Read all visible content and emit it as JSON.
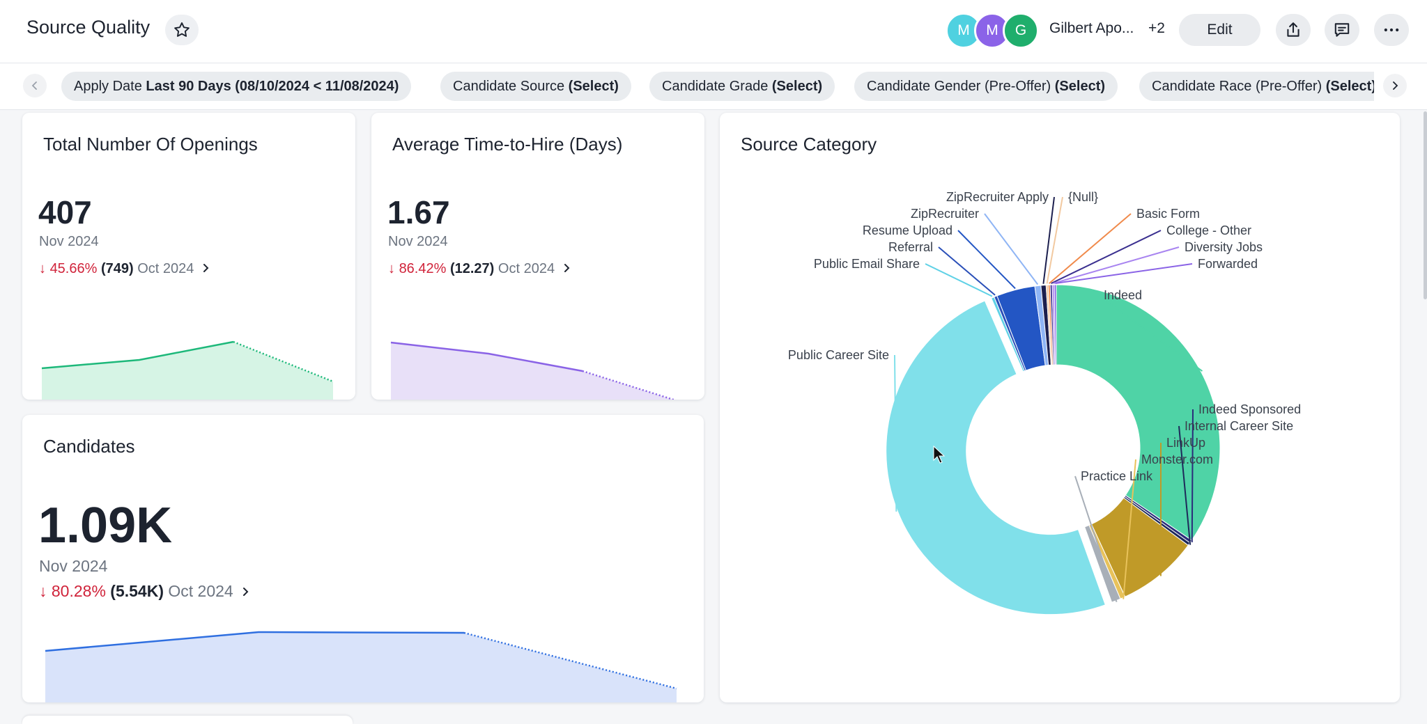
{
  "header": {
    "title": "Source Quality",
    "avatars": [
      {
        "initial": "M",
        "color": "#4fd1e0"
      },
      {
        "initial": "M",
        "color": "#8b63e8"
      },
      {
        "initial": "G",
        "color": "#1fae6c"
      }
    ],
    "user_name": "Gilbert Apo...",
    "more_users": "+2",
    "edit_label": "Edit",
    "icons": [
      "star-icon",
      "share-icon",
      "comment-icon",
      "more-icon"
    ]
  },
  "filters": [
    {
      "label": "Apply Date",
      "value": "Last 90 Days (08/10/2024 < 11/08/2024)"
    },
    {
      "label": "Candidate Source",
      "value": "(Select)"
    },
    {
      "label": "Candidate Grade",
      "value": "(Select)"
    },
    {
      "label": "Candidate Gender (Pre-Offer)",
      "value": "(Select)"
    },
    {
      "label": "Candidate Race (Pre-Offer)",
      "value": "(Select)"
    }
  ],
  "cards": {
    "openings": {
      "title": "Total Number Of Openings",
      "value": "407",
      "period": "Nov 2024",
      "change_pct": "45.66%",
      "compare_value": "(749)",
      "compare_period": "Oct 2024",
      "color": "#1db87a",
      "fill": "#d6f4e5"
    },
    "time_to_hire": {
      "title": "Average Time-to-Hire (Days)",
      "value": "1.67",
      "period": "Nov 2024",
      "change_pct": "86.42%",
      "compare_value": "(12.27)",
      "compare_period": "Oct 2024",
      "color": "#8a63e6",
      "fill": "#e8e0f8"
    },
    "candidates": {
      "title": "Candidates",
      "value": "1.09K",
      "period": "Nov 2024",
      "change_pct": "80.28%",
      "compare_value": "(5.54K)",
      "compare_period": "Oct 2024",
      "color": "#2f6fe0",
      "fill": "#d9e3fa"
    }
  },
  "chart_data": {
    "type": "pie",
    "title": "Source Category",
    "donut": true,
    "slices": [
      {
        "label": "Indeed",
        "value": 34.5,
        "color": "#4fd3a6"
      },
      {
        "label": "Indeed Sponsored",
        "value": 0.3,
        "color": "#2b2d7a"
      },
      {
        "label": "Internal Career Site",
        "value": 0.3,
        "color": "#1e2a5a"
      },
      {
        "label": "LinkUp",
        "value": 8.0,
        "color": "#c09a28"
      },
      {
        "label": "Monster.com",
        "value": 0.5,
        "color": "#e8c25a"
      },
      {
        "label": "Practice Link",
        "value": 0.9,
        "color": "#a8afb8"
      },
      {
        "label": "Public Career Site",
        "value": 49.0,
        "color": "#80e0ea"
      },
      {
        "label": "Public Email Share",
        "value": 0.3,
        "color": "#5fd1e6"
      },
      {
        "label": "Referral",
        "value": 0.3,
        "color": "#2a4fb8"
      },
      {
        "label": "Resume Upload",
        "value": 3.8,
        "color": "#2356c4"
      },
      {
        "label": "ZipRecruiter",
        "value": 0.6,
        "color": "#8fb5f5"
      },
      {
        "label": "ZipRecruiter Apply",
        "value": 0.5,
        "color": "#1c1f4e"
      },
      {
        "label": "{Null}",
        "value": 0.2,
        "color": "#f2c9a0"
      },
      {
        "label": "Basic Form",
        "value": 0.2,
        "color": "#f08a4b"
      },
      {
        "label": "College - Other",
        "value": 0.2,
        "color": "#3a2f8f"
      },
      {
        "label": "Diversity Jobs",
        "value": 0.2,
        "color": "#a884f0"
      },
      {
        "label": "Forwarded",
        "value": 0.2,
        "color": "#8a63e6"
      }
    ]
  }
}
